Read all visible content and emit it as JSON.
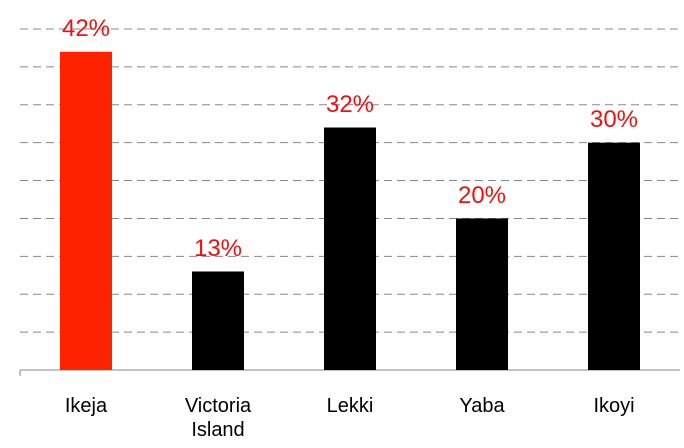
{
  "chart_data": {
    "type": "bar",
    "categories": [
      "Ikeja",
      "Victoria Island",
      "Lekki",
      "Yaba",
      "Ikoyi"
    ],
    "values": [
      42,
      13,
      32,
      20,
      30
    ],
    "value_labels": [
      "42%",
      "13%",
      "32%",
      "20%",
      "30%"
    ],
    "colors": [
      "#ff2200",
      "#000000",
      "#000000",
      "#000000",
      "#000000"
    ],
    "label_color": "#ee1111",
    "ylim": [
      0,
      45
    ],
    "yticks": [
      0,
      5,
      10,
      15,
      20,
      25,
      30,
      35,
      40,
      45
    ],
    "grid": true
  }
}
